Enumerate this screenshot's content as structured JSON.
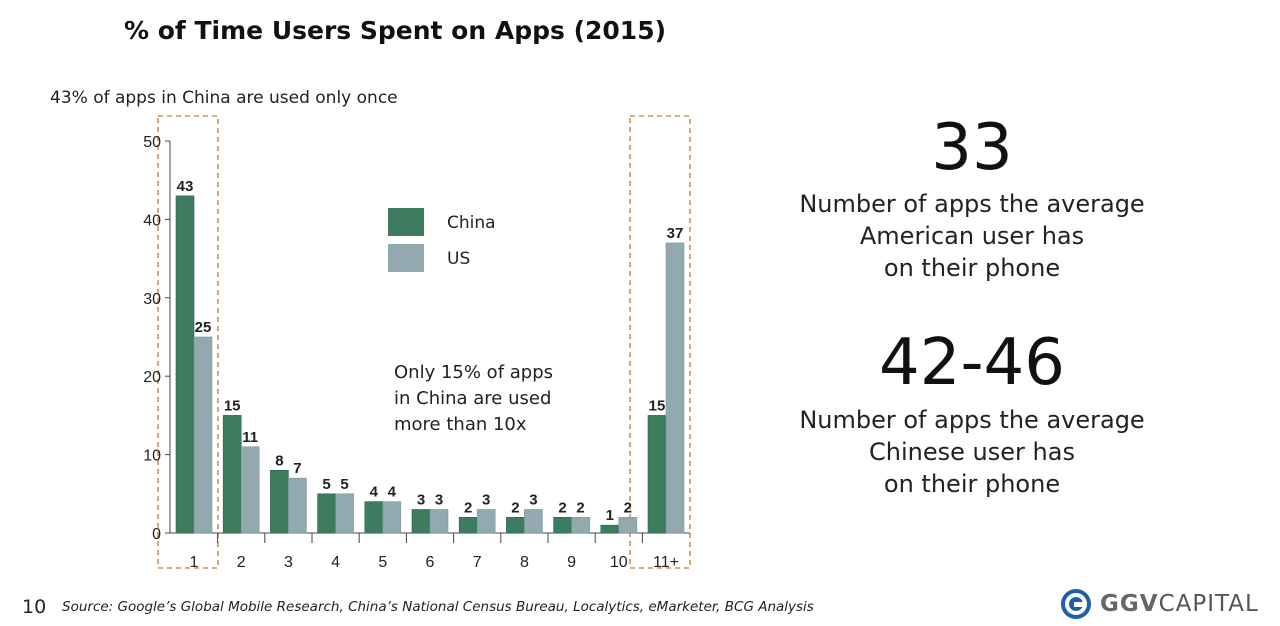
{
  "title": "% of Time Users Spent on Apps (2015)",
  "annotation_top": "43% of apps in China are used only once",
  "annotation_mid": [
    "Only 15% of apps",
    "in China are used",
    "more than 10x"
  ],
  "chart_data": {
    "type": "bar",
    "categories": [
      "1",
      "2",
      "3",
      "4",
      "5",
      "6",
      "7",
      "8",
      "9",
      "10",
      "11+"
    ],
    "series": [
      {
        "name": "China",
        "values": [
          43,
          15,
          8,
          5,
          4,
          3,
          2,
          2,
          2,
          1,
          15
        ],
        "color": "#3d7c5e"
      },
      {
        "name": "US",
        "values": [
          25,
          11,
          7,
          5,
          4,
          3,
          3,
          3,
          2,
          2,
          37
        ],
        "color": "#93a9b0"
      }
    ],
    "yticks": [
      0,
      10,
      20,
      30,
      40,
      50
    ],
    "ylim": [
      0,
      50
    ],
    "legend_position": "upper-middle",
    "highlighted_categories": [
      "1",
      "11+"
    ]
  },
  "stats": [
    {
      "number": "33",
      "desc": [
        "Number of apps the average",
        "American user has",
        "on their phone"
      ]
    },
    {
      "number": "42-46",
      "desc": [
        "Number of apps the average",
        "Chinese user has",
        "on their phone"
      ]
    }
  ],
  "footer": {
    "page_number": "10",
    "source": "Source: Google’s Global Mobile Research, China’s National Census Bureau, Localytics, eMarketer, BCG Analysis"
  },
  "logo": {
    "bold": "GGV",
    "rest": "CAPITAL"
  }
}
